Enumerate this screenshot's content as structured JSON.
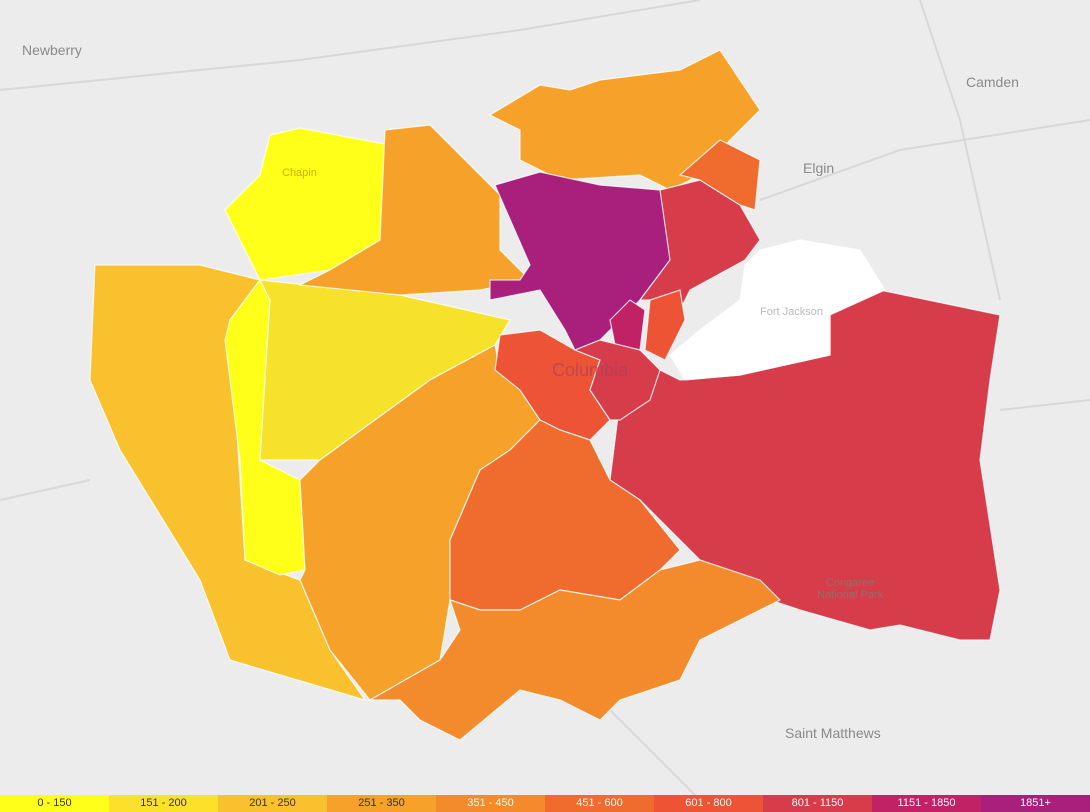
{
  "places": [
    "Newberry",
    "Camden",
    "Elgin",
    "Chapin",
    "Fort Jackson",
    "Columbia",
    "Congaree National Park",
    "Saint Matthews"
  ],
  "legend": [
    {
      "label": "0 - 150",
      "color": "#ffff1a"
    },
    {
      "label": "151 - 200",
      "color": "#fde02a"
    },
    {
      "label": "201 - 250",
      "color": "#f8c12d"
    },
    {
      "label": "251 - 350",
      "color": "#f6a22a"
    },
    {
      "label": "351 - 450",
      "color": "#f38b2c"
    },
    {
      "label": "451 - 600",
      "color": "#f06b2e"
    },
    {
      "label": "601 - 800",
      "color": "#ec5435"
    },
    {
      "label": "801 - 1150",
      "color": "#d63c4a"
    },
    {
      "label": "1151 - 1850",
      "color": "#c12266"
    },
    {
      "label": "1851+",
      "color": "#a81f7c"
    }
  ]
}
